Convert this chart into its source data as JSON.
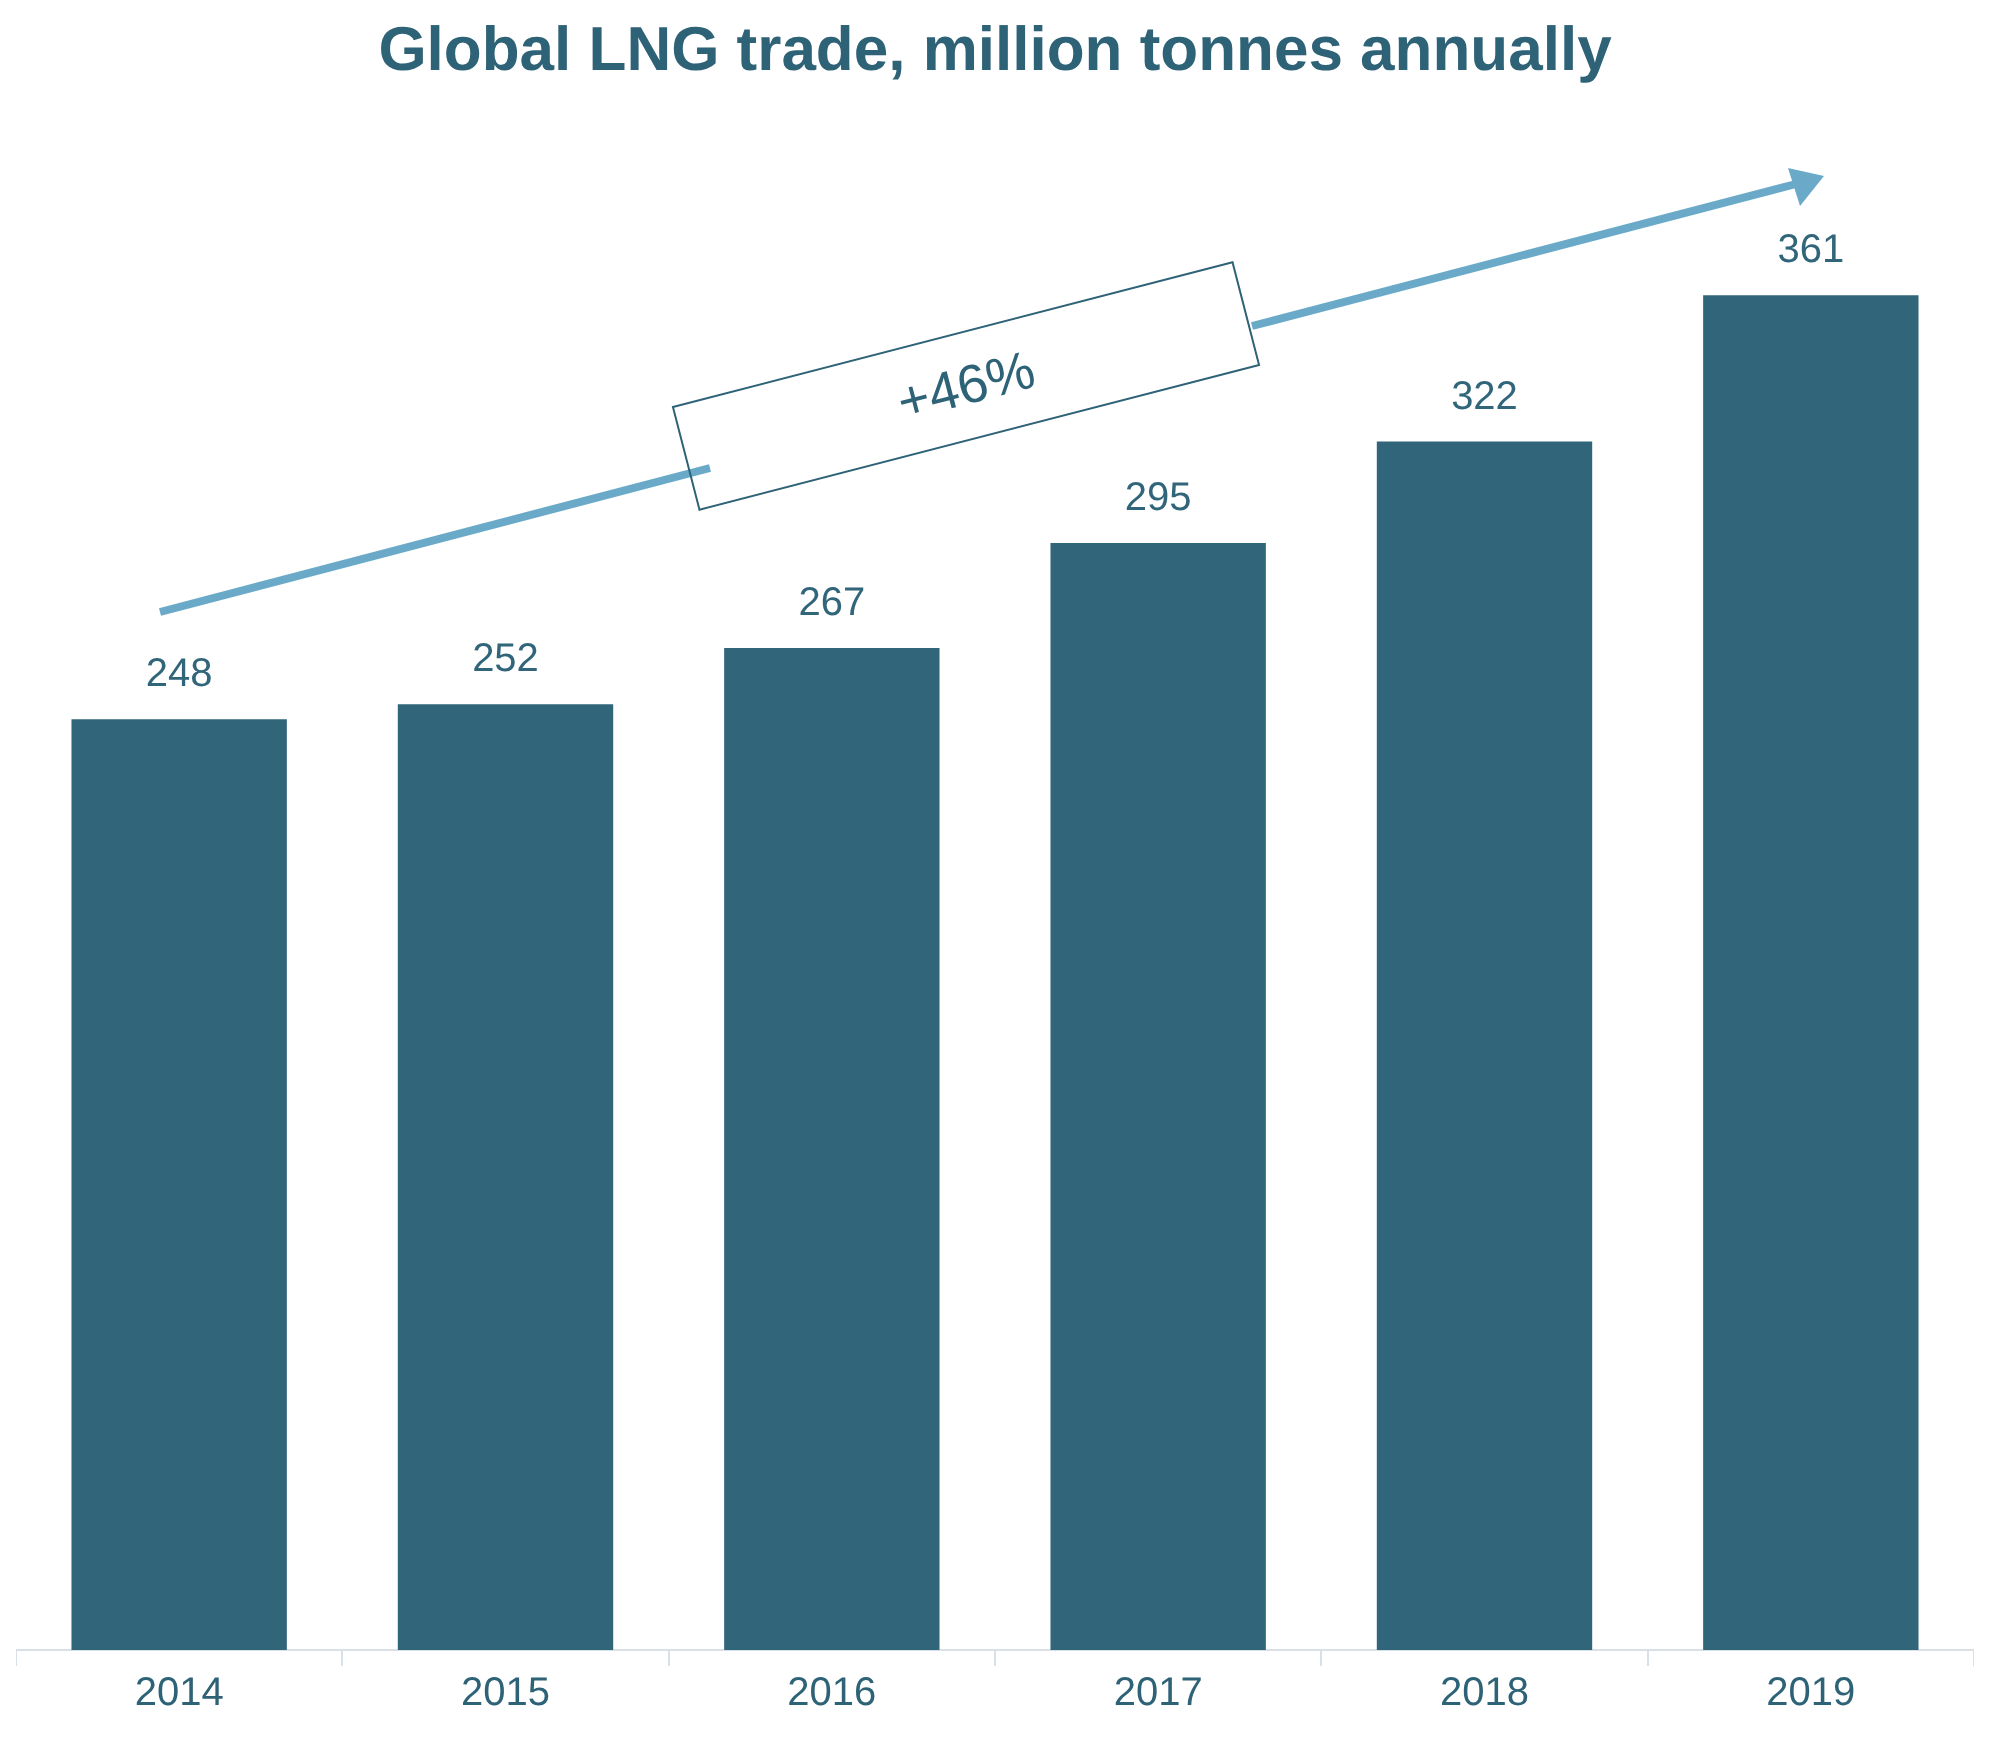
{
  "chart_data": {
    "type": "bar",
    "title": "Global LNG trade, million tonnes annually",
    "categories": [
      "2014",
      "2015",
      "2016",
      "2017",
      "2018",
      "2019"
    ],
    "values": [
      248,
      252,
      267,
      295,
      322,
      361
    ],
    "color": "#31657a",
    "data_labels": true,
    "grid": false,
    "legend": false,
    "tick_labels": "x",
    "annotations": [
      "+46%"
    ]
  }
}
